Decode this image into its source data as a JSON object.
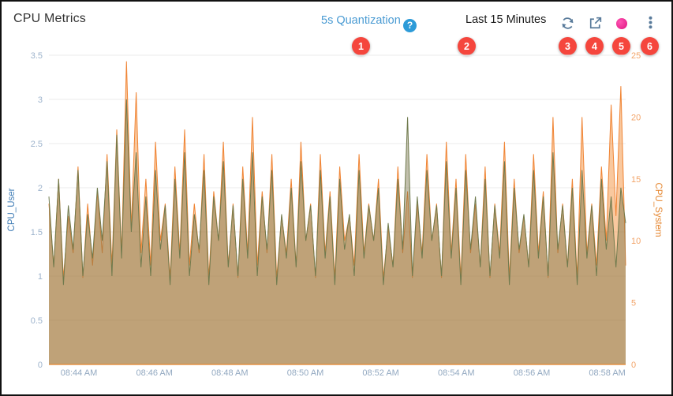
{
  "header": {
    "title": "CPU Metrics",
    "quantization_label": "5s Quantization",
    "help_icon_glyph": "?",
    "time_range": "Last 15 Minutes"
  },
  "toolbar_icons": [
    "refresh-icon",
    "export-icon",
    "live-stream-dot",
    "kebab-menu-icon"
  ],
  "callouts": [
    "1",
    "2",
    "3",
    "4",
    "5",
    "6"
  ],
  "colors": {
    "callout_red": "#f5463d",
    "live_dot_magenta": "#e6148a",
    "quantization_blue": "#4a9bd3",
    "help_icon_blue": "#2d9bd8",
    "toolbar_icon_slate": "#587a9a",
    "left_axis_blue": "#3f7cb5",
    "right_axis_orange": "#e5862f"
  },
  "chart_data": {
    "type": "area",
    "title": "CPU Metrics",
    "grid": true,
    "x_axis": {
      "labels": [
        "08:44 AM",
        "08:46 AM",
        "08:48 AM",
        "08:50 AM",
        "08:52 AM",
        "08:54 AM",
        "08:56 AM",
        "08:58 AM"
      ],
      "first_label_fraction": 0.052,
      "last_label_fraction": 0.968
    },
    "y_left": {
      "label": "CPU_User",
      "min": 0,
      "max": 3.5,
      "ticks": [
        "0",
        "0.5",
        "1",
        "1.5",
        "2",
        "2.5",
        "3",
        "3.5"
      ],
      "color": "#3f7cb5"
    },
    "y_right": {
      "label": "CPU_System",
      "min": 0,
      "max": 25,
      "ticks": [
        "0",
        "5",
        "10",
        "15",
        "20",
        "25"
      ],
      "color": "#e5862f"
    },
    "series": [
      {
        "name": "CPU_System",
        "axis": "right",
        "stroke": "#f08434",
        "fill": "rgba(244,146,62,0.5)",
        "values": [
          13,
          8,
          15,
          7,
          12,
          9,
          16,
          7,
          13,
          8,
          14,
          9,
          17,
          8,
          19,
          9,
          24.5,
          11,
          22,
          9,
          15,
          8,
          18,
          10,
          13,
          7,
          16,
          9,
          19,
          8,
          13,
          9,
          17,
          7,
          14,
          10,
          18,
          8,
          13,
          7,
          16,
          9,
          20,
          8,
          14,
          9,
          17,
          7,
          12,
          9,
          15,
          8,
          18,
          10,
          13,
          7,
          17,
          9,
          14,
          7,
          16,
          10,
          12,
          8,
          17,
          9,
          13,
          10,
          15,
          7,
          11,
          8,
          16,
          9,
          14,
          7,
          13,
          9,
          17,
          10,
          13,
          7,
          18,
          9,
          15,
          7,
          17,
          9,
          13,
          8,
          16,
          7,
          13,
          9,
          18,
          7,
          15,
          9,
          12,
          8,
          17,
          9,
          14,
          7,
          20,
          9,
          13,
          8,
          15,
          7,
          20,
          9,
          13,
          8,
          16,
          10,
          21,
          12,
          22.5,
          8
        ]
      },
      {
        "name": "CPU_User",
        "axis": "left",
        "stroke": "#6f7a4d",
        "fill": "rgba(120,116,74,0.45)",
        "values": [
          1.9,
          1.1,
          2.1,
          0.9,
          1.8,
          1.3,
          2.2,
          1.0,
          1.7,
          1.2,
          2.0,
          1.4,
          2.3,
          1.0,
          2.6,
          1.2,
          3.0,
          1.5,
          2.4,
          1.1,
          1.9,
          1.0,
          2.2,
          1.3,
          1.8,
          0.9,
          2.1,
          1.2,
          2.4,
          1.0,
          1.7,
          1.3,
          2.2,
          0.9,
          1.9,
          1.4,
          2.3,
          1.1,
          1.8,
          1.0,
          2.1,
          1.2,
          2.4,
          1.0,
          1.9,
          1.3,
          2.2,
          0.9,
          1.7,
          1.2,
          2.0,
          1.1,
          2.3,
          1.4,
          1.8,
          1.0,
          2.2,
          1.2,
          1.9,
          0.9,
          2.1,
          1.3,
          1.7,
          1.0,
          2.2,
          1.2,
          1.8,
          1.4,
          2.0,
          0.9,
          1.6,
          1.1,
          2.1,
          1.3,
          2.8,
          1.0,
          1.9,
          1.2,
          2.2,
          1.4,
          1.8,
          1.0,
          2.3,
          1.2,
          2.0,
          0.9,
          2.2,
          1.3,
          1.9,
          1.1,
          2.1,
          1.0,
          1.8,
          1.2,
          2.3,
          0.9,
          2.0,
          1.3,
          1.7,
          1.1,
          2.2,
          1.2,
          1.9,
          1.0,
          2.4,
          1.3,
          1.8,
          1.1,
          2.0,
          0.9,
          2.2,
          1.2,
          1.8,
          1.0,
          2.1,
          1.3,
          1.9,
          1.1,
          2.0,
          1.6
        ]
      }
    ]
  }
}
